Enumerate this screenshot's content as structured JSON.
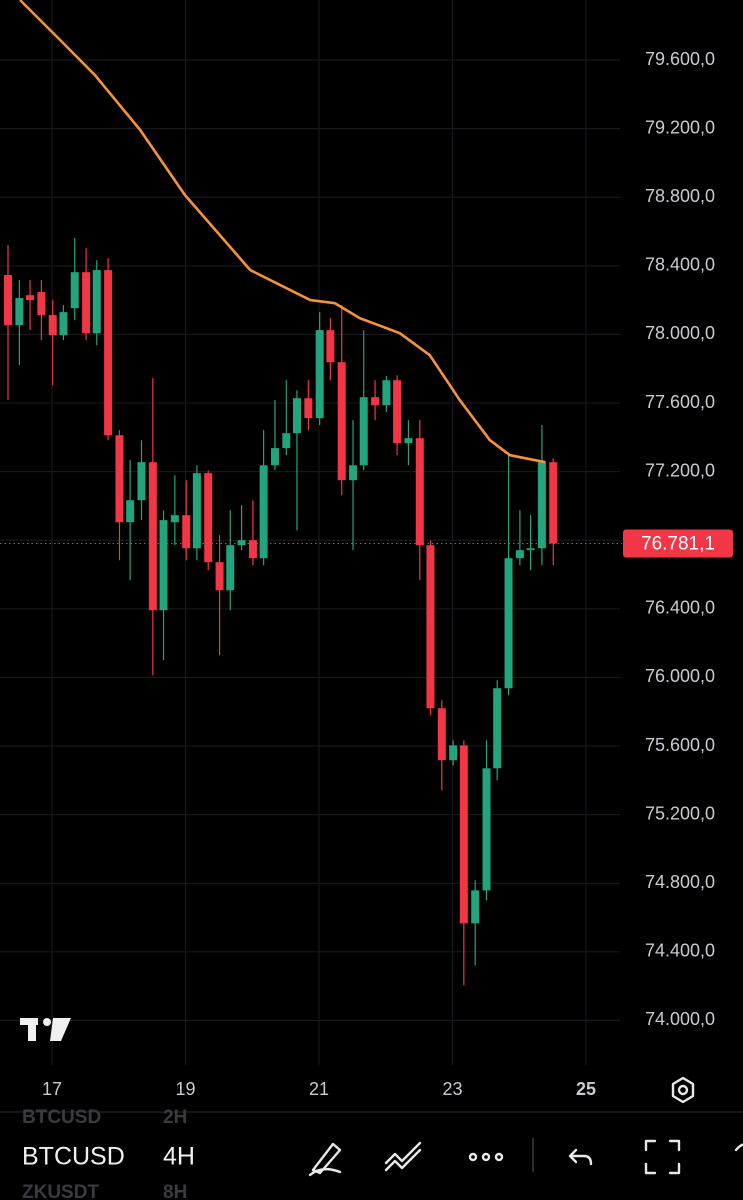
{
  "chart_data": {
    "type": "candlestick",
    "x": [
      16.34,
      16.51,
      16.67,
      16.84,
      17.01,
      17.17,
      17.34,
      17.51,
      17.67,
      17.84,
      18.01,
      18.17,
      18.34,
      18.51,
      18.67,
      18.84,
      19.01,
      19.17,
      19.34,
      19.51,
      19.67,
      19.84,
      20.01,
      20.17,
      20.34,
      20.51,
      20.67,
      20.84,
      21.01,
      21.17,
      21.34,
      21.51,
      21.67,
      21.84,
      22.01,
      22.17,
      22.34,
      22.51,
      22.67,
      22.84,
      23.01,
      23.17,
      23.34,
      23.51,
      23.67,
      23.84,
      24.01,
      24.17,
      24.34,
      24.51
    ],
    "open": [
      78346,
      78054,
      78229,
      78247,
      78113,
      77996,
      78153,
      78363,
      78007,
      78375,
      77412,
      76905,
      77033,
      77255,
      76392,
      76905,
      76946,
      76753,
      77191,
      76672,
      76508,
      76771,
      76800,
      76695,
      77237,
      77337,
      77424,
      77628,
      77512,
      78025,
      77838,
      77150,
      77237,
      77634,
      77587,
      77733,
      77366,
      77395,
      76771,
      75820,
      75517,
      75604,
      74566,
      74758,
      75470,
      75937,
      76695,
      76742,
      76753,
      77255
    ],
    "high": [
      78521,
      78317,
      78317,
      78317,
      78200,
      78171,
      78562,
      78503,
      78433,
      78445,
      77442,
      77267,
      77383,
      77745,
      76975,
      77179,
      77150,
      77237,
      77208,
      76829,
      76975,
      77004,
      77033,
      77442,
      77617,
      77733,
      77675,
      77733,
      78130,
      78095,
      78171,
      77500,
      78025,
      77733,
      77757,
      77762,
      77500,
      77500,
      76800,
      75867,
      75633,
      75633,
      74817,
      75633,
      75983,
      77296,
      76975,
      76946,
      77471,
      77278
    ],
    "low": [
      77617,
      77821,
      78025,
      77967,
      77704,
      77967,
      78083,
      77967,
      77937,
      77383,
      76683,
      76567,
      76917,
      76012,
      76100,
      76771,
      76683,
      76683,
      76625,
      76129,
      76392,
      76742,
      76654,
      76654,
      77208,
      77296,
      76858,
      77442,
      77471,
      77733,
      77062,
      76742,
      77208,
      77500,
      77547,
      77296,
      77237,
      76567,
      75779,
      75342,
      75487,
      74204,
      74321,
      74700,
      75400,
      75896,
      76654,
      76625,
      76654,
      76654
    ],
    "close": [
      78054,
      78212,
      78200,
      78113,
      77996,
      78130,
      78363,
      78007,
      78375,
      77412,
      76905,
      77033,
      77255,
      76392,
      76917,
      76946,
      76753,
      77191,
      76672,
      76508,
      76771,
      76800,
      76695,
      77237,
      77337,
      77424,
      77628,
      77512,
      78025,
      77838,
      77150,
      77237,
      77634,
      77587,
      77733,
      77366,
      77395,
      76771,
      75820,
      75517,
      75604,
      74566,
      74758,
      75470,
      75937,
      76695,
      76742,
      76753,
      77255,
      76781.1
    ],
    "up_color": "#22a57e",
    "down_color": "#f23645",
    "overlay": {
      "type": "line",
      "color": "#f7923a",
      "x": [
        16.52,
        17.12,
        17.64,
        18.32,
        18.99,
        19.97,
        20.87,
        21.24,
        21.61,
        22.21,
        22.66,
        23.11,
        23.56,
        23.86,
        24.39
      ],
      "values": [
        79950,
        79717,
        79513,
        79192,
        78813,
        78375,
        78200,
        78182,
        78095,
        78007,
        77879,
        77617,
        77383,
        77296,
        77255
      ]
    },
    "current_price": {
      "value": 76781.1,
      "label": "76.781,1"
    },
    "xlim": [
      16.22,
      25.51
    ],
    "xticks": [
      17,
      19,
      21,
      23,
      25
    ],
    "ylim": [
      73740,
      79950
    ],
    "yticks": [
      {
        "value": 74000,
        "label": "74.000,0"
      },
      {
        "value": 74400,
        "label": "74.400,0"
      },
      {
        "value": 74800,
        "label": "74.800,0"
      },
      {
        "value": 75200,
        "label": "75.200,0"
      },
      {
        "value": 75600,
        "label": "75.600,0"
      },
      {
        "value": 76000,
        "label": "76.000,0"
      },
      {
        "value": 76400,
        "label": "76.400,0"
      },
      {
        "value": 76800,
        "label": "76.800,0"
      },
      {
        "value": 77200,
        "label": "77.200,0"
      },
      {
        "value": 77600,
        "label": "77.600,0"
      },
      {
        "value": 78000,
        "label": "78.000,0"
      },
      {
        "value": 78400,
        "label": "78.400,0"
      },
      {
        "value": 78800,
        "label": "78.800,0"
      },
      {
        "value": 79200,
        "label": "79.200,0"
      },
      {
        "value": 79600,
        "label": "79.600,0"
      }
    ],
    "grid": true
  },
  "toolbar": {
    "symbol_above": "BTCUSD",
    "interval_above": "2H",
    "symbol": "BTCUSD",
    "interval": "4H",
    "symbol_below": "ZKUSDT",
    "interval_below": "8H"
  }
}
